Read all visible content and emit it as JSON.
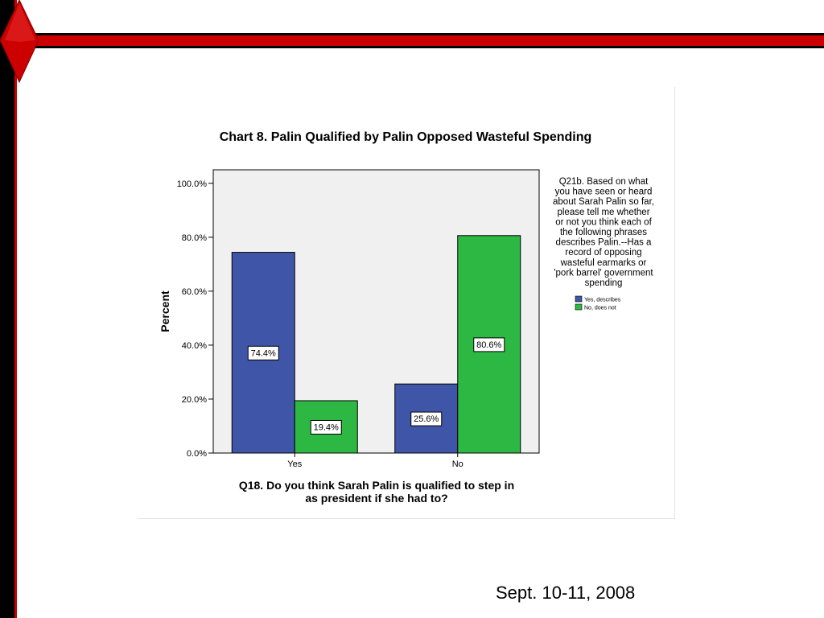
{
  "slide": {
    "footer_date": "Sept. 10-11, 2008",
    "accent_color": "#cc0000"
  },
  "chart_data": {
    "type": "bar",
    "title": "Chart 8. Palin Qualified by Palin Opposed Wasteful Spending",
    "xlabel_lines": [
      "Q18. Do you think Sarah Palin is qualified to step in",
      "as president if she had to?"
    ],
    "ylabel": "Percent",
    "categories": [
      "Yes",
      "No"
    ],
    "series": [
      {
        "name": "Yes, describes",
        "values": [
          74.4,
          25.6
        ],
        "labels": [
          "74.4%",
          "25.6%"
        ],
        "color": "#3f56a8"
      },
      {
        "name": "No, does not",
        "values": [
          19.4,
          80.6
        ],
        "labels": [
          "19.4%",
          "80.6%"
        ],
        "color": "#2db843"
      }
    ],
    "yticks": [
      {
        "value": 0,
        "label": "0.0%"
      },
      {
        "value": 20,
        "label": "20.0%"
      },
      {
        "value": 40,
        "label": "40.0%"
      },
      {
        "value": 60,
        "label": "60.0%"
      },
      {
        "value": 80,
        "label": "80.0%"
      },
      {
        "value": 100,
        "label": "100.0%"
      }
    ],
    "ylim": [
      0,
      105
    ],
    "legend": {
      "placement": "right",
      "title_lines": [
        "Q21b. Based on what",
        "you have seen or heard",
        "about Sarah Palin so far,",
        "please tell me whether",
        "or not you think each of",
        "the following phrases",
        "describes Palin.--Has a",
        "record of opposing",
        "wasteful earmarks or",
        "'pork barrel' government",
        "spending"
      ]
    },
    "plot_background": "#f0f0f0",
    "grid": false
  }
}
